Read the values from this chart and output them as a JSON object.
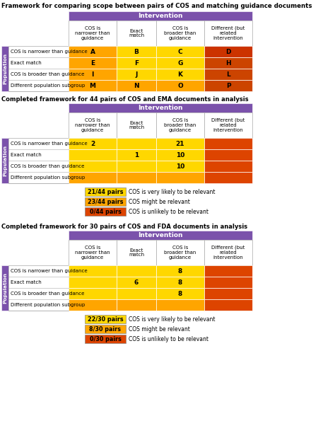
{
  "title1": "Framework for comparing scope between pairs of COS and matching guidance documents",
  "title2": "Completed framework for 44 pairs of COS and EMA documents in analysis",
  "title3": "Completed framework for 30 pairs of COS and FDA documents in analysis",
  "col_headers": [
    "COS is\nnarrower than\nguidance",
    "Exact\nmatch",
    "COS is\nbroader than\nguidance",
    "Different (but\nrelated\nintervention"
  ],
  "row_headers": [
    "COS is narrower than guidance",
    "Exact match",
    "COS is broader than guidance",
    "Different population subgroup"
  ],
  "framework1_cells": [
    [
      "A",
      "B",
      "C",
      "D"
    ],
    [
      "E",
      "F",
      "G",
      "H"
    ],
    [
      "I",
      "J",
      "K",
      "L"
    ],
    [
      "M",
      "N",
      "O",
      "P"
    ]
  ],
  "framework2_cells": [
    [
      "2",
      "",
      "21",
      ""
    ],
    [
      "",
      "1",
      "10",
      ""
    ],
    [
      "",
      "",
      "10",
      ""
    ],
    [
      "",
      "",
      "",
      ""
    ]
  ],
  "framework3_cells": [
    [
      "",
      "",
      "8",
      ""
    ],
    [
      "",
      "6",
      "8",
      ""
    ],
    [
      "",
      "",
      "8",
      ""
    ],
    [
      "",
      "",
      "",
      ""
    ]
  ],
  "cell_colors_fw1": [
    [
      "#FFA500",
      "#FFD700",
      "#FFD700",
      "#CC3300"
    ],
    [
      "#FFA500",
      "#FFD700",
      "#FFD700",
      "#CC4400"
    ],
    [
      "#FFA500",
      "#FFD700",
      "#FFD700",
      "#CC4400"
    ],
    [
      "#FFA500",
      "#FFA500",
      "#FFA500",
      "#CC4400"
    ]
  ],
  "cell_colors_fw2": [
    [
      "#FFD700",
      "#FFD700",
      "#FFD700",
      "#DD4400"
    ],
    [
      "#FFD700",
      "#FFD700",
      "#FFD700",
      "#DD4400"
    ],
    [
      "#FFD700",
      "#FFD700",
      "#FFD700",
      "#DD4400"
    ],
    [
      "#FFA500",
      "#FFA500",
      "#FFA500",
      "#DD4400"
    ]
  ],
  "cell_colors_fw3": [
    [
      "#FFD700",
      "#FFD700",
      "#FFD700",
      "#DD4400"
    ],
    [
      "#FFD700",
      "#FFD700",
      "#FFD700",
      "#DD4400"
    ],
    [
      "#FFD700",
      "#FFD700",
      "#FFD700",
      "#DD4400"
    ],
    [
      "#FFA500",
      "#FFA500",
      "#FFA500",
      "#DD4400"
    ]
  ],
  "intervention_header_color": "#7B52AB",
  "population_label_color": "#7B52AB",
  "legend_ema": [
    {
      "color": "#FFD700",
      "text": "21/44 pairs",
      "desc": "COS is very likely to be relevant"
    },
    {
      "color": "#FFA500",
      "text": "23/44 pairs",
      "desc": "COS might be relevant"
    },
    {
      "color": "#DD4400",
      "text": "0/44 pairs",
      "desc": "COS is unlikely to be relevant"
    }
  ],
  "legend_fda": [
    {
      "color": "#FFD700",
      "text": "22/30 pairs",
      "desc": "COS is very likely to be relevant"
    },
    {
      "color": "#FFA500",
      "text": "8/30 pairs",
      "desc": "COS might be relevant"
    },
    {
      "color": "#DD4400",
      "text": "0/30 pairs",
      "desc": "COS is unlikely to be relevant"
    }
  ]
}
